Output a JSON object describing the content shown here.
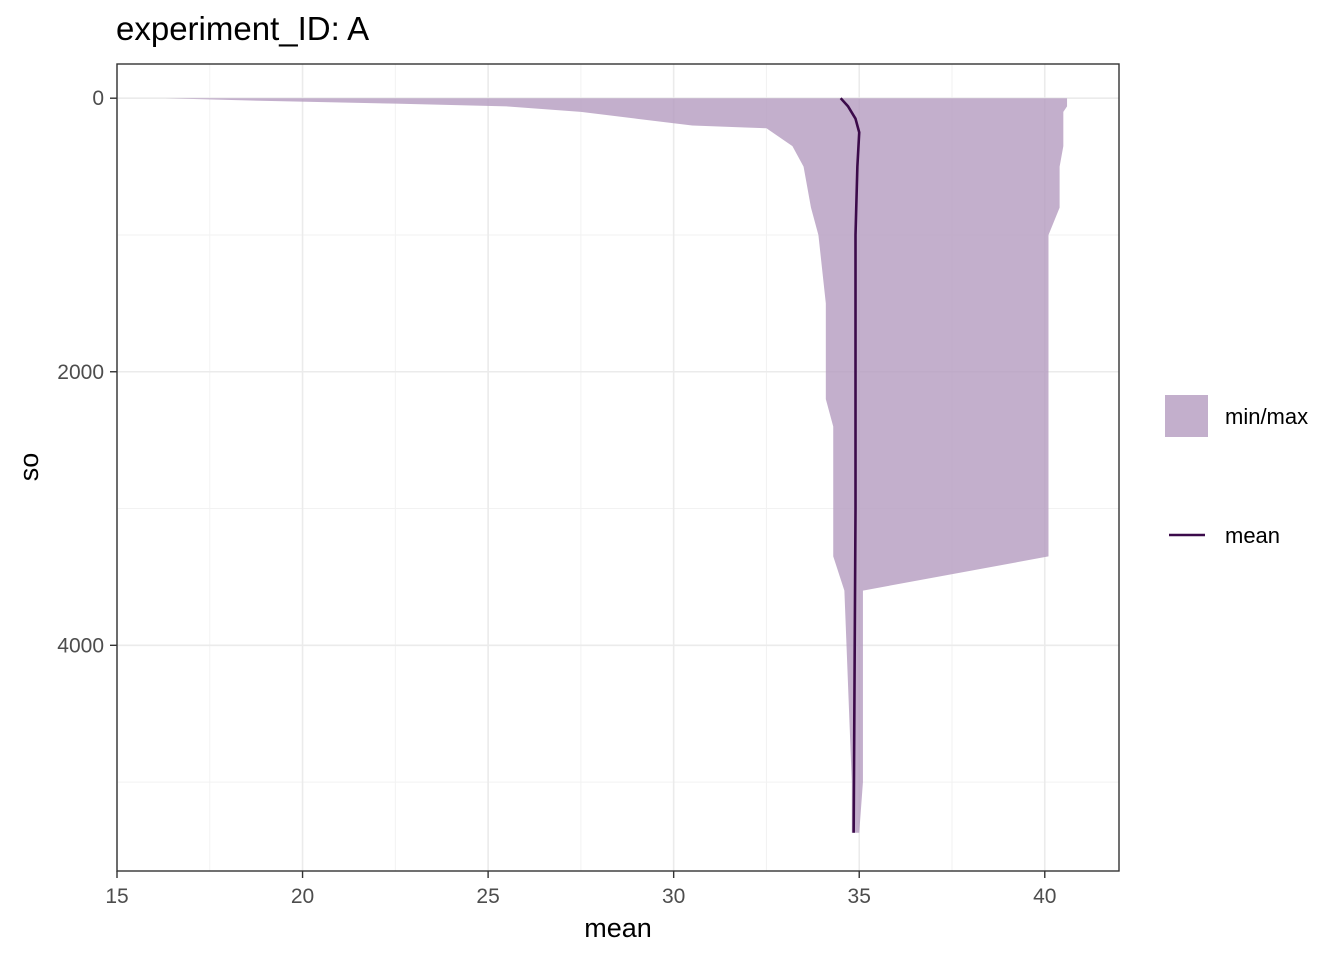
{
  "chart_data": {
    "type": "area",
    "title": "experiment_ID: A",
    "xlabel": "mean",
    "ylabel": "so",
    "xlim": [
      15,
      42
    ],
    "ylim": [
      -250,
      5650
    ],
    "y_reversed": true,
    "grid": true,
    "x_ticks": [
      15,
      20,
      25,
      30,
      35,
      40
    ],
    "y_ticks": [
      0,
      2000,
      4000
    ],
    "legend_position": "right",
    "colors": {
      "ribbon": "#b49bbf",
      "line": "#3b0a4a"
    },
    "legend": [
      {
        "key": "ribbon",
        "label": "min/max"
      },
      {
        "key": "line",
        "label": "mean"
      }
    ],
    "series": [
      {
        "key": "ribbon",
        "name": "min/max",
        "kind": "ribbon",
        "points": [
          {
            "y": 0,
            "min": 16.3,
            "max": 40.6
          },
          {
            "y": 20,
            "min": 19,
            "max": 40.6
          },
          {
            "y": 40,
            "min": 22.5,
            "max": 40.6
          },
          {
            "y": 60,
            "min": 25.5,
            "max": 40.6
          },
          {
            "y": 100,
            "min": 27.5,
            "max": 40.5
          },
          {
            "y": 150,
            "min": 29,
            "max": 40.5
          },
          {
            "y": 200,
            "min": 30.5,
            "max": 40.5
          },
          {
            "y": 220,
            "min": 32.5,
            "max": 40.5
          },
          {
            "y": 350,
            "min": 33.2,
            "max": 40.5
          },
          {
            "y": 500,
            "min": 33.5,
            "max": 40.4
          },
          {
            "y": 800,
            "min": 33.7,
            "max": 40.4
          },
          {
            "y": 1000,
            "min": 33.9,
            "max": 40.1
          },
          {
            "y": 1500,
            "min": 34.1,
            "max": 40.1
          },
          {
            "y": 2200,
            "min": 34.1,
            "max": 40.1
          },
          {
            "y": 2400,
            "min": 34.3,
            "max": 40.1
          },
          {
            "y": 3350,
            "min": 34.3,
            "max": 40.1
          },
          {
            "y": 3600,
            "min": 34.6,
            "max": 35.1
          },
          {
            "y": 5000,
            "min": 34.8,
            "max": 35.1
          },
          {
            "y": 5370,
            "min": 34.8,
            "max": 35.0
          }
        ]
      },
      {
        "key": "line",
        "name": "mean",
        "kind": "line",
        "points": [
          {
            "x": 34.5,
            "y": 0
          },
          {
            "x": 34.7,
            "y": 60
          },
          {
            "x": 34.9,
            "y": 150
          },
          {
            "x": 35.0,
            "y": 250
          },
          {
            "x": 34.95,
            "y": 500
          },
          {
            "x": 34.9,
            "y": 1000
          },
          {
            "x": 34.9,
            "y": 3000
          },
          {
            "x": 34.85,
            "y": 5370
          }
        ]
      }
    ]
  }
}
